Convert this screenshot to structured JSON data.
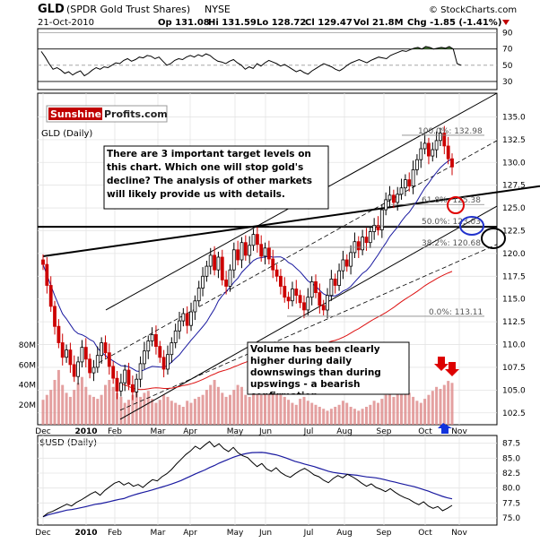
{
  "header": {
    "ticker": "GLD",
    "name": "(SPDR Gold Trust Shares)",
    "exchange": "NYSE",
    "date": "21-Oct-2010",
    "watermark": "© StockCharts.com",
    "open": "Op 131.08",
    "high": "Hi 131.59",
    "low": "Lo 128.72",
    "close": "Cl 129.47",
    "volume": "Vol 21.8M",
    "change": "Chg -1.85 (-1.41%)",
    "change_color": "#c00000"
  },
  "logo": {
    "part1": "Sunshine",
    "part2": "Profits.com",
    "part1_color": "#ffffff",
    "part1_bg": "#c00000",
    "part2_color": "#222222"
  },
  "main_panel_label": "GLD (Daily)",
  "bottom_panel_label": "$USD (Daily)",
  "annotations": {
    "target_box": "There are 3 important target levels on this chart. Which one will stop gold's decline? The analysis of other markets will likely provide us with details.",
    "volume_box": "Volume has been clearly higher during daily downswings than during upswings - a bearish confirmation."
  },
  "fib_labels": [
    "100.0%: 132.98",
    "61.8%: 125.38",
    "50.0%: 123.03",
    "38.2%: 120.68",
    "0.0%: 113.11"
  ],
  "colors": {
    "up": "#000000",
    "down": "#cc0000",
    "ma_blue": "#1a1aa0",
    "ma_red": "#dd1111",
    "volume": "#dd8888",
    "rsi_fill": "#4a7a3a",
    "target_red": "#e00000",
    "target_blue": "#2233cc",
    "target_black": "#000000"
  },
  "chart_data": [
    {
      "type": "line",
      "title": "RSI",
      "y_ticks": [
        90,
        70,
        50,
        30
      ],
      "overbought": 70,
      "oversold": 30,
      "values": [
        67,
        60,
        52,
        45,
        47,
        44,
        40,
        42,
        38,
        41,
        43,
        37,
        40,
        44,
        47,
        45,
        48,
        47,
        50,
        53,
        52,
        56,
        58,
        55,
        57,
        60,
        59,
        62,
        61,
        58,
        60,
        55,
        50,
        52,
        56,
        58,
        57,
        60,
        62,
        60,
        63,
        61,
        64,
        62,
        58,
        55,
        54,
        52,
        55,
        57,
        53,
        50,
        45,
        48,
        46,
        52,
        49,
        53,
        56,
        54,
        52,
        49,
        51,
        48,
        45,
        42,
        44,
        41,
        39,
        43,
        46,
        49,
        52,
        50,
        48,
        45,
        43,
        46,
        50,
        53,
        55,
        57,
        55,
        53,
        56,
        58,
        60,
        59,
        58,
        62,
        64,
        66,
        68,
        67,
        69,
        71,
        72,
        70,
        73,
        72,
        70,
        71,
        72,
        71,
        73,
        70,
        52,
        50
      ]
    },
    {
      "type": "candlestick",
      "title": "GLD (Daily)",
      "x_ticks": [
        "Dec",
        "2010",
        "Feb",
        "Mar",
        "Apr",
        "May",
        "Jun",
        "Jul",
        "Aug",
        "Sep",
        "Oct",
        "Nov"
      ],
      "y_ticks": [
        135.0,
        132.5,
        130.0,
        127.5,
        125.0,
        122.5,
        120.0,
        117.5,
        115.0,
        112.5,
        110.0,
        107.5,
        105.0,
        102.5
      ],
      "ylim": [
        101.2,
        137.6
      ],
      "closes": [
        118.8,
        116.5,
        114.2,
        112.0,
        110.2,
        108.6,
        109.4,
        107.8,
        106.5,
        108.1,
        109.7,
        108.4,
        106.9,
        107.5,
        108.8,
        110.2,
        109.1,
        107.6,
        106.3,
        104.9,
        105.8,
        107.2,
        105.6,
        104.8,
        106.2,
        107.9,
        109.3,
        110.4,
        111.1,
        109.8,
        108.6,
        107.3,
        108.9,
        110.2,
        111.5,
        112.6,
        113.4,
        112.1,
        113.6,
        114.8,
        116.2,
        117.5,
        118.6,
        119.8,
        118.2,
        119.6,
        117.1,
        116.4,
        118.2,
        120.4,
        119.3,
        121.2,
        119.8,
        120.9,
        122.1,
        121.0,
        119.7,
        120.6,
        119.4,
        118.2,
        117.5,
        116.4,
        115.2,
        114.8,
        116.1,
        115.4,
        114.6,
        113.8,
        115.2,
        116.9,
        115.7,
        114.3,
        113.8,
        115.4,
        117.2,
        116.5,
        118.1,
        119.3,
        118.6,
        120.1,
        121.3,
        120.4,
        121.8,
        121.2,
        122.4,
        123.1,
        122.6,
        124.8,
        125.9,
        126.4,
        125.6,
        126.5,
        127.2,
        128.1,
        127.4,
        129.2,
        130.3,
        131.5,
        132.1,
        130.7,
        131.4,
        132.4,
        133.2,
        131.8,
        130.4,
        129.5
      ],
      "volume_ylabel_ticks": [
        "80M",
        "60M",
        "40M",
        "20M"
      ],
      "volume_millions": [
        25,
        30,
        35,
        45,
        55,
        40,
        32,
        28,
        35,
        42,
        48,
        38,
        30,
        28,
        26,
        30,
        40,
        45,
        38,
        32,
        28,
        22,
        25,
        30,
        35,
        28,
        32,
        34,
        26,
        22,
        25,
        30,
        28,
        24,
        22,
        20,
        18,
        24,
        22,
        26,
        28,
        30,
        35,
        40,
        45,
        38,
        32,
        28,
        30,
        35,
        40,
        38,
        30,
        28,
        32,
        35,
        30,
        38,
        42,
        40,
        35,
        30,
        28,
        25,
        22,
        20,
        26,
        28,
        24,
        22,
        20,
        18,
        16,
        14,
        16,
        18,
        20,
        24,
        22,
        18,
        16,
        14,
        16,
        18,
        20,
        24,
        22,
        26,
        30,
        34,
        28,
        32,
        40,
        36,
        32,
        28,
        24,
        22,
        26,
        30,
        34,
        38,
        36,
        40,
        44,
        42
      ]
    },
    {
      "type": "line",
      "title": "$USD (Daily)",
      "x_ticks": [
        "Dec",
        "2010",
        "Feb",
        "Mar",
        "Apr",
        "May",
        "Jun",
        "Jul",
        "Aug",
        "Sep",
        "Oct",
        "Nov"
      ],
      "y_ticks": [
        87.5,
        85.0,
        82.5,
        80.0,
        77.5,
        75.0
      ],
      "ylim": [
        73.8,
        88.8
      ],
      "values": [
        75.2,
        75.8,
        76.1,
        76.5,
        76.9,
        77.3,
        77.0,
        77.6,
        78.0,
        78.5,
        79.0,
        79.4,
        78.8,
        79.6,
        80.2,
        80.8,
        81.1,
        80.5,
        80.9,
        80.3,
        80.6,
        80.1,
        80.8,
        81.4,
        81.2,
        81.9,
        82.4,
        83.1,
        84.0,
        84.8,
        85.6,
        86.2,
        87.0,
        86.5,
        87.2,
        87.8,
        86.9,
        87.4,
        86.6,
        86.1,
        86.8,
        85.9,
        85.4,
        85.1,
        84.3,
        83.6,
        84.1,
        83.2,
        82.8,
        83.4,
        82.6,
        82.1,
        81.8,
        82.4,
        82.9,
        83.3,
        82.8,
        82.2,
        81.9,
        81.3,
        80.9,
        81.6,
        82.1,
        81.7,
        82.3,
        81.9,
        81.4,
        80.8,
        80.3,
        80.7,
        80.1,
        79.8,
        79.4,
        79.9,
        79.3,
        78.8,
        78.4,
        78.1,
        77.6,
        77.2,
        77.7,
        77.0,
        76.6,
        76.9,
        76.2,
        76.6,
        77.1
      ]
    }
  ]
}
